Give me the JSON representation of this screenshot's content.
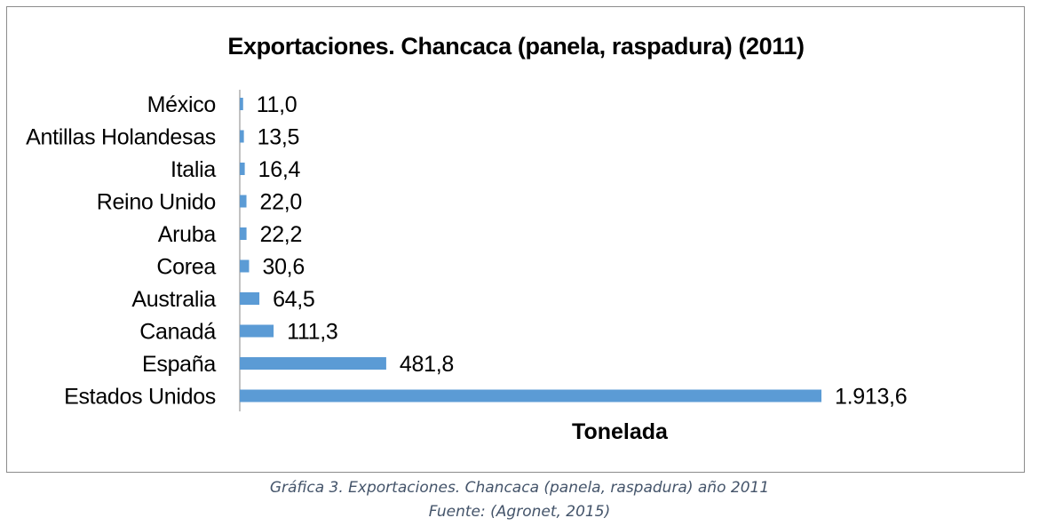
{
  "chart_data": {
    "type": "bar",
    "orientation": "horizontal",
    "title": "Exportaciones. Chancaca (panela, raspadura) (2011)",
    "xlabel": "Tonelada",
    "ylabel": "",
    "categories": [
      "México",
      "Antillas Holandesas",
      "Italia",
      "Reino Unido",
      "Aruba",
      "Corea",
      "Australia",
      "Canadá",
      "España",
      "Estados Unidos"
    ],
    "values": [
      11.0,
      13.5,
      16.4,
      22.0,
      22.2,
      30.6,
      64.5,
      111.3,
      481.8,
      1913.6
    ],
    "value_labels": [
      "11,0",
      "13,5",
      "16,4",
      "22,0",
      "22,2",
      "30,6",
      "64,5",
      "111,3",
      "481,8",
      "1.913,6"
    ],
    "xlim": [
      0,
      1913.6
    ],
    "grid": false,
    "legend": "none",
    "bar_color": "#5b9bd5"
  },
  "caption": {
    "line1": "Gráfica 3. Exportaciones. Chancaca (panela, raspadura) año 2011",
    "line2": "Fuente: (Agronet, 2015)"
  }
}
